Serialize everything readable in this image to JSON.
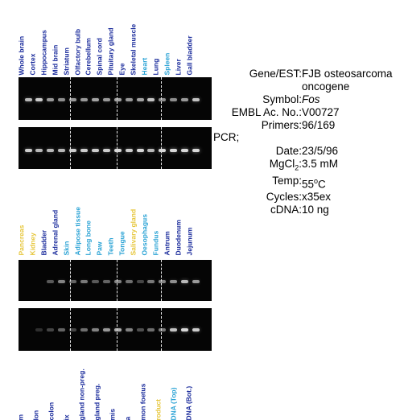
{
  "colors": {
    "blue": "#1b2c9c",
    "cyan": "#2ba3d5",
    "yellow": "#e6c63a",
    "gel_background": "#050505",
    "divider": "#e8e8e8"
  },
  "panel_top": {
    "lanes": [
      {
        "label": "Whole brain",
        "color": "blue",
        "band_top": 0.7,
        "band_bottom": 0.8
      },
      {
        "label": "Cortex",
        "color": "blue",
        "band_top": 0.8,
        "band_bottom": 0.7
      },
      {
        "label": "Hippocampus",
        "color": "blue",
        "band_top": 0.55,
        "band_bottom": 0.7
      },
      {
        "label": "Mid brain",
        "color": "blue",
        "band_top": 0.5,
        "band_bottom": 0.7
      },
      {
        "label": "Striatum",
        "color": "blue",
        "band_top": 0.55,
        "band_bottom": 0.8
      },
      {
        "label": "Olfactory bulb",
        "color": "blue",
        "band_top": 0.55,
        "band_bottom": 0.8
      },
      {
        "label": "Cerebellum",
        "color": "blue",
        "band_top": 0.6,
        "band_bottom": 0.8
      },
      {
        "label": "Spinal cord",
        "color": "blue",
        "band_top": 0.55,
        "band_bottom": 0.8
      },
      {
        "label": "Pituitary gland",
        "color": "blue",
        "band_top": 0.6,
        "band_bottom": 0.85
      },
      {
        "label": "Eye",
        "color": "blue",
        "band_top": 0.55,
        "band_bottom": 0.8
      },
      {
        "label": "Skeletal muscle",
        "color": "blue",
        "band_top": 0.6,
        "band_bottom": 0.85
      },
      {
        "label": "Heart",
        "color": "cyan",
        "band_top": 0.75,
        "band_bottom": 0.7
      },
      {
        "label": "Lung",
        "color": "blue",
        "band_top": 0.5,
        "band_bottom": 0.9
      },
      {
        "label": "Spleen",
        "color": "cyan",
        "band_top": 0.5,
        "band_bottom": 0.9
      },
      {
        "label": "Liver",
        "color": "blue",
        "band_top": 0.55,
        "band_bottom": 1.0
      },
      {
        "label": "Gall bladder",
        "color": "blue",
        "band_top": 0.75,
        "band_bottom": 1.0
      }
    ]
  },
  "panel_bottom": {
    "lanes": [
      {
        "label": "Pancreas",
        "color": "yellow",
        "band_top": 0.0,
        "band_bottom": 0.0
      },
      {
        "label": "Kidney",
        "color": "yellow",
        "band_top": 0.0,
        "band_bottom": 0.05
      },
      {
        "label": "Bladder",
        "color": "blue",
        "band_top": 0.25,
        "band_bottom": 0.15
      },
      {
        "label": "Adrenal gland",
        "color": "blue",
        "band_top": 0.45,
        "band_bottom": 0.3
      },
      {
        "label": "Skin",
        "color": "cyan",
        "band_top": 0.3,
        "band_bottom": 0.15
      },
      {
        "label": "Adipose tissue",
        "color": "cyan",
        "band_top": 0.4,
        "band_bottom": 0.35
      },
      {
        "label": "Long bone",
        "color": "cyan",
        "band_top": 0.25,
        "band_bottom": 0.45
      },
      {
        "label": "Paw",
        "color": "cyan",
        "band_top": 0.3,
        "band_bottom": 0.55
      },
      {
        "label": "Teeth",
        "color": "cyan",
        "band_top": 0.45,
        "band_bottom": 0.65
      },
      {
        "label": "Tongue",
        "color": "cyan",
        "band_top": 0.35,
        "band_bottom": 0.45
      },
      {
        "label": "Salivary gland",
        "color": "yellow",
        "band_top": 0.15,
        "band_bottom": 0.2
      },
      {
        "label": "Oesophagus",
        "color": "cyan",
        "band_top": 0.4,
        "band_bottom": 0.35
      },
      {
        "label": "Fundus",
        "color": "cyan",
        "band_top": 0.45,
        "band_bottom": 0.4
      },
      {
        "label": "Antrum",
        "color": "blue",
        "band_top": 0.5,
        "band_bottom": 0.75
      },
      {
        "label": "Duodenum",
        "color": "blue",
        "band_top": 0.7,
        "band_bottom": 0.85
      },
      {
        "label": "Jejunum",
        "color": "blue",
        "band_top": 0.55,
        "band_bottom": 0.8
      }
    ]
  },
  "footer_labels": [
    {
      "label": "m",
      "color": "blue"
    },
    {
      "label": "lon",
      "color": "blue"
    },
    {
      "label": "colon",
      "color": "blue"
    },
    {
      "label": "ix",
      "color": "blue"
    },
    {
      "label": "gland non-preg.",
      "color": "blue"
    },
    {
      "label": "gland preg.",
      "color": "blue"
    },
    {
      "label": "mis",
      "color": "blue"
    },
    {
      "label": "a",
      "color": "blue"
    },
    {
      "label": "mon foetus",
      "color": "blue"
    },
    {
      "label": "roduct",
      "color": "yellow"
    },
    {
      "label": "DNA (Top)",
      "color": "cyan"
    },
    {
      "label": "DNA (Bot.)",
      "color": "blue"
    }
  ],
  "info": {
    "gene_key": "Gene/EST:",
    "gene_value_line1": "FJB osteosarcoma",
    "gene_value_line2": "oncogene",
    "symbol_key": "Symbol:",
    "symbol_value": "Fos",
    "embl_key": "EMBL Ac. No.:",
    "embl_value": "V00727",
    "primers_key": "Primers:",
    "primers_value": "96/169",
    "pcr_label": "PCR;",
    "date_key": "Date:",
    "date_value": "23/5/96",
    "mgcl_key_prefix": "MgCl",
    "mgcl_key_sub": "2",
    "mgcl_key_suffix": ":",
    "mgcl_value": "3.5 mM",
    "temp_key": "Temp:",
    "temp_value_num": "55",
    "temp_value_sup": "o",
    "temp_value_unit": "C",
    "cycles_key": "Cycles:",
    "cycles_value": "x35ex",
    "cdna_key": "cDNA:",
    "cdna_value": "10 ng"
  }
}
